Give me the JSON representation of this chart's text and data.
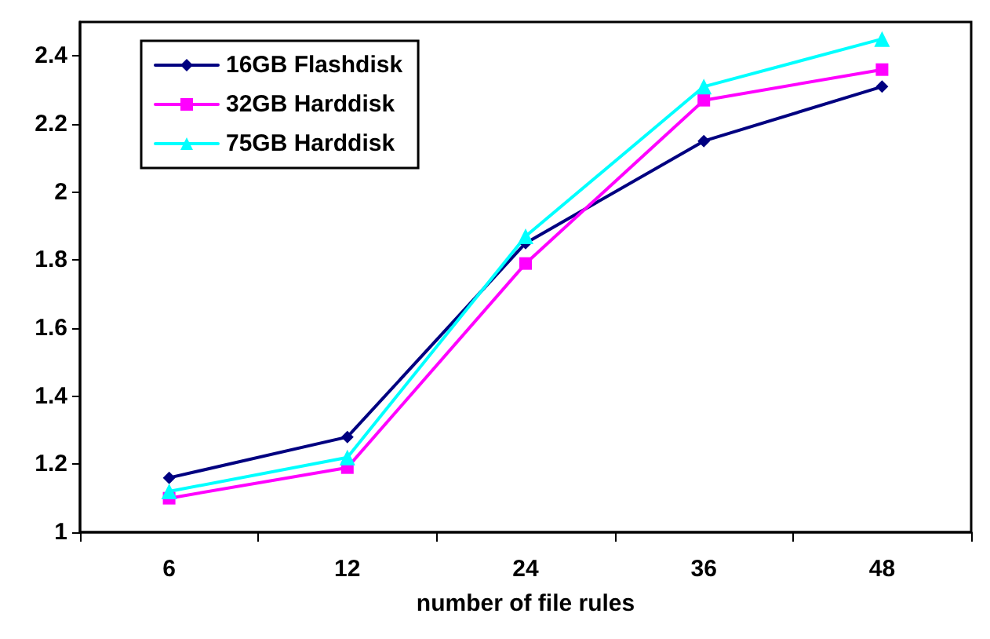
{
  "chart_data": {
    "type": "line",
    "xlabel": "number of file rules",
    "categories": [
      "6",
      "12",
      "24",
      "36",
      "48"
    ],
    "series": [
      {
        "name": "16GB Flashdisk",
        "color": "#000080",
        "marker": "diamond",
        "values": [
          1.16,
          1.28,
          1.85,
          2.15,
          2.31
        ]
      },
      {
        "name": "32GB Harddisk",
        "color": "#ff00ff",
        "marker": "square",
        "values": [
          1.1,
          1.19,
          1.79,
          2.27,
          2.36
        ]
      },
      {
        "name": "75GB Harddisk",
        "color": "#00ffff",
        "marker": "triangle",
        "values": [
          1.12,
          1.22,
          1.87,
          2.31,
          2.45
        ]
      }
    ],
    "ylim": [
      1,
      2.5
    ],
    "yticks": [
      1,
      1.2,
      1.4,
      1.6,
      1.8,
      2,
      2.2,
      2.4
    ],
    "grid": false,
    "legend": "top left",
    "line_style": "solid"
  }
}
